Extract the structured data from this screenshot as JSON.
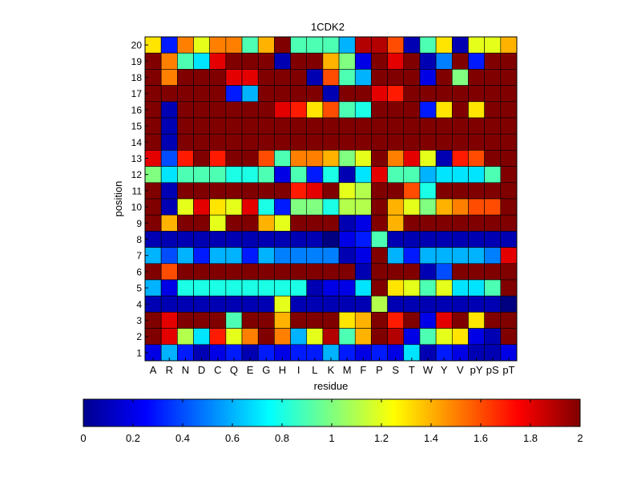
{
  "chart_data": {
    "type": "heatmap",
    "title": "1CDK2",
    "xlabel": "residue",
    "ylabel": "position",
    "x_categories": [
      "A",
      "R",
      "N",
      "D",
      "C",
      "Q",
      "E",
      "G",
      "H",
      "I",
      "L",
      "K",
      "M",
      "F",
      "P",
      "S",
      "T",
      "W",
      "Y",
      "V",
      "pY",
      "pS",
      "pT"
    ],
    "y_categories": [
      "1",
      "2",
      "3",
      "4",
      "5",
      "6",
      "7",
      "8",
      "9",
      "10",
      "11",
      "12",
      "13",
      "14",
      "15",
      "16",
      "17",
      "18",
      "19",
      "20"
    ],
    "colormap": "jet",
    "clim": [
      0,
      2
    ],
    "colorbar_ticks": [
      "0",
      "0.2",
      "0.4",
      "0.6",
      "0.8",
      "1",
      "1.2",
      "1.4",
      "1.6",
      "1.8",
      "2"
    ],
    "rows_top_to_bottom": [
      [
        1.3,
        0.3,
        1.5,
        1.2,
        1.5,
        1.5,
        0.9,
        1.4,
        2.0,
        0.9,
        0.9,
        0.9,
        0.6,
        1.9,
        1.9,
        1.6,
        0.1,
        0.9,
        1.3,
        0.1,
        1.2,
        1.2,
        1.4
      ],
      [
        2.0,
        1.5,
        0.9,
        0.7,
        1.8,
        2.0,
        2.0,
        2.0,
        0.1,
        2.0,
        2.0,
        1.4,
        1.0,
        0.2,
        2.0,
        1.8,
        2.0,
        0.1,
        0.5,
        2.0,
        0.3,
        2.0,
        2.0
      ],
      [
        2.0,
        1.5,
        2.0,
        2.0,
        2.0,
        1.8,
        1.8,
        2.0,
        2.0,
        2.0,
        0.1,
        1.6,
        0.9,
        0.6,
        2.0,
        2.0,
        2.0,
        0.2,
        2.0,
        1.0,
        2.0,
        2.0,
        2.0
      ],
      [
        2.0,
        2.0,
        2.0,
        2.0,
        2.0,
        0.3,
        0.6,
        2.0,
        2.0,
        2.0,
        2.0,
        0.1,
        2.0,
        2.0,
        1.8,
        1.7,
        2.0,
        2.0,
        2.0,
        2.0,
        2.0,
        2.0,
        2.0
      ],
      [
        2.0,
        0.1,
        2.0,
        2.0,
        2.0,
        2.0,
        2.0,
        2.0,
        1.8,
        1.7,
        1.3,
        1.6,
        0.9,
        0.8,
        2.0,
        2.0,
        2.0,
        0.3,
        1.3,
        2.0,
        1.3,
        2.0,
        2.0
      ],
      [
        2.0,
        0.1,
        2.0,
        2.0,
        2.0,
        2.0,
        2.0,
        2.0,
        2.0,
        2.0,
        2.0,
        2.0,
        2.0,
        2.0,
        2.0,
        2.0,
        2.0,
        2.0,
        2.0,
        2.0,
        2.0,
        2.0,
        2.0
      ],
      [
        2.0,
        0.1,
        2.0,
        2.0,
        2.0,
        2.0,
        2.0,
        2.0,
        2.0,
        2.0,
        2.0,
        2.0,
        2.0,
        2.0,
        2.0,
        2.0,
        2.0,
        2.0,
        2.0,
        2.0,
        2.0,
        2.0,
        2.0
      ],
      [
        1.8,
        0.4,
        1.7,
        2.0,
        1.7,
        2.0,
        2.0,
        1.6,
        0.9,
        1.5,
        1.5,
        1.4,
        1.0,
        1.2,
        2.0,
        1.5,
        1.8,
        1.2,
        0.1,
        1.7,
        1.6,
        2.0,
        2.0
      ],
      [
        1.0,
        0.7,
        0.9,
        0.9,
        0.9,
        0.8,
        0.8,
        0.9,
        0.2,
        0.9,
        0.3,
        0.8,
        0.1,
        0.7,
        1.8,
        0.9,
        0.9,
        0.6,
        0.7,
        0.7,
        0.7,
        0.9,
        2.0
      ],
      [
        2.0,
        0.1,
        2.0,
        2.0,
        2.0,
        2.0,
        2.0,
        2.0,
        2.0,
        1.7,
        1.8,
        2.0,
        1.2,
        1.1,
        2.0,
        2.0,
        1.6,
        0.8,
        2.0,
        2.0,
        2.0,
        2.0,
        2.0
      ],
      [
        2.0,
        0.1,
        1.2,
        1.8,
        1.3,
        1.2,
        1.8,
        0.8,
        0.3,
        1.0,
        1.0,
        0.8,
        1.1,
        1.1,
        2.0,
        1.4,
        1.2,
        1.0,
        1.4,
        1.5,
        1.6,
        1.6,
        2.0
      ],
      [
        2.0,
        1.4,
        2.0,
        2.0,
        1.2,
        2.0,
        2.0,
        1.4,
        1.2,
        2.0,
        2.0,
        2.0,
        0.1,
        0.2,
        2.0,
        1.4,
        2.0,
        2.0,
        2.0,
        2.0,
        2.0,
        2.0,
        2.0
      ],
      [
        0.1,
        0.1,
        0.1,
        0.1,
        0.1,
        0.1,
        0.1,
        0.1,
        0.1,
        0.1,
        0.1,
        0.0,
        0.2,
        0.3,
        0.9,
        0.1,
        0.1,
        0.1,
        0.1,
        0.1,
        0.1,
        0.1,
        0.1
      ],
      [
        0.6,
        0.4,
        0.6,
        0.3,
        0.6,
        0.6,
        0.3,
        0.6,
        0.5,
        0.5,
        0.5,
        0.5,
        0.1,
        0.2,
        2.0,
        0.6,
        0.3,
        0.6,
        0.6,
        0.6,
        0.6,
        0.5,
        1.8
      ],
      [
        2.0,
        1.6,
        2.0,
        2.0,
        2.0,
        2.0,
        2.0,
        2.0,
        2.0,
        2.0,
        2.0,
        2.0,
        2.0,
        0.1,
        2.0,
        2.0,
        2.0,
        0.1,
        0.4,
        2.0,
        2.0,
        2.0,
        2.0
      ],
      [
        0.6,
        0.2,
        0.8,
        0.8,
        0.8,
        0.8,
        0.8,
        0.8,
        0.8,
        0.8,
        0.1,
        0.2,
        0.2,
        0.7,
        2.0,
        1.3,
        1.2,
        0.9,
        1.2,
        0.7,
        0.7,
        0.9,
        2.0
      ],
      [
        0.1,
        0.1,
        0.1,
        0.1,
        0.1,
        0.1,
        0.1,
        0.1,
        1.2,
        0.1,
        0.1,
        0.1,
        0.1,
        0.1,
        1.1,
        0.1,
        0.1,
        0.1,
        0.1,
        0.1,
        0.1,
        0.1,
        0.0
      ],
      [
        2.0,
        1.8,
        2.0,
        2.0,
        2.0,
        0.9,
        2.0,
        2.0,
        1.4,
        2.0,
        2.0,
        2.0,
        1.3,
        1.4,
        2.0,
        1.7,
        2.0,
        0.2,
        1.8,
        2.0,
        1.3,
        2.0,
        2.0
      ],
      [
        2.0,
        1.8,
        1.1,
        0.7,
        1.7,
        1.2,
        1.5,
        2.0,
        1.5,
        0.6,
        1.2,
        1.9,
        0.9,
        1.4,
        2.0,
        1.9,
        0.2,
        0.9,
        1.2,
        1.3,
        0.2,
        0.1,
        2.0
      ],
      [
        0.2,
        0.6,
        0.3,
        0.1,
        0.2,
        0.3,
        0.1,
        0.3,
        0.2,
        0.3,
        0.3,
        0.6,
        0.3,
        0.2,
        0.3,
        0.2,
        0.7,
        0.1,
        0.3,
        0.2,
        0.1,
        0.1,
        0.2
      ]
    ]
  }
}
